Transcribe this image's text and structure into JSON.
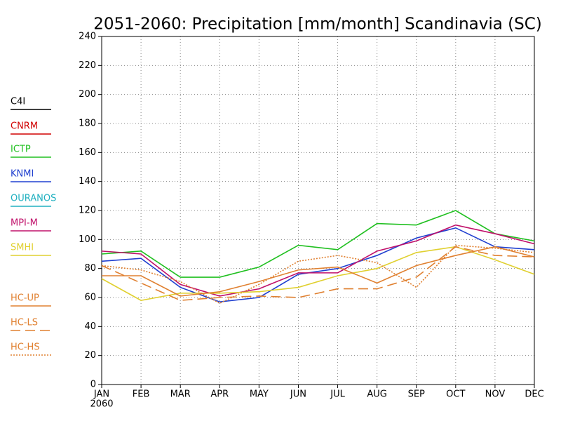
{
  "chart_data": {
    "type": "line",
    "title": "2051-2060: Precipitation [mm/month] Scandinavia (SC)",
    "categories": [
      "JAN",
      "FEB",
      "MAR",
      "APR",
      "MAY",
      "JUN",
      "JUL",
      "AUG",
      "SEP",
      "OCT",
      "NOV",
      "DEC"
    ],
    "x_sublabel": "2060",
    "ylim": [
      0,
      240
    ],
    "yticks": [
      0,
      20,
      40,
      60,
      80,
      100,
      120,
      140,
      160,
      180,
      200,
      220,
      240
    ],
    "grid": true,
    "legend": "left",
    "series": [
      {
        "name": "C4I",
        "color": "#000000",
        "dash": "solid",
        "values": [
          null,
          null,
          null,
          null,
          null,
          null,
          null,
          null,
          null,
          null,
          null,
          null
        ]
      },
      {
        "name": "CNRM",
        "color": "#d00000",
        "dash": "solid",
        "values": [
          null,
          null,
          null,
          null,
          null,
          null,
          null,
          null,
          null,
          null,
          null,
          null
        ]
      },
      {
        "name": "ICTP",
        "color": "#20c020",
        "dash": "solid",
        "values": [
          90,
          92,
          74,
          74,
          81,
          96,
          93,
          111,
          110,
          120,
          104,
          99
        ]
      },
      {
        "name": "KNMI",
        "color": "#2040d0",
        "dash": "solid",
        "values": [
          85,
          87,
          67,
          57,
          60,
          76,
          80,
          89,
          101,
          108,
          95,
          93
        ]
      },
      {
        "name": "OURANOS",
        "color": "#20b0c0",
        "dash": "solid",
        "values": [
          null,
          null,
          null,
          null,
          null,
          null,
          null,
          null,
          null,
          null,
          null,
          null
        ]
      },
      {
        "name": "MPI-M",
        "color": "#c0106a",
        "dash": "solid",
        "values": [
          92,
          90,
          69,
          61,
          66,
          77,
          77,
          92,
          99,
          110,
          104,
          97
        ]
      },
      {
        "name": "SMHI",
        "color": "#e0d030",
        "dash": "solid",
        "values": [
          73,
          58,
          63,
          63,
          64,
          67,
          75,
          80,
          91,
          95,
          86,
          76
        ]
      },
      {
        "name": "HC-UP",
        "color": "#e08030",
        "dash": "solid",
        "values": [
          75,
          75,
          61,
          64,
          71,
          79,
          81,
          70,
          82,
          89,
          95,
          88
        ]
      },
      {
        "name": "HC-LS",
        "color": "#e08030",
        "dash": "dashed",
        "values": [
          82,
          70,
          58,
          60,
          61,
          60,
          66,
          66,
          74,
          95,
          89,
          88
        ]
      },
      {
        "name": "HC-HS",
        "color": "#e08030",
        "dash": "dotted",
        "values": [
          82,
          79,
          71,
          56,
          69,
          85,
          89,
          84,
          67,
          96,
          94,
          91
        ]
      }
    ]
  }
}
